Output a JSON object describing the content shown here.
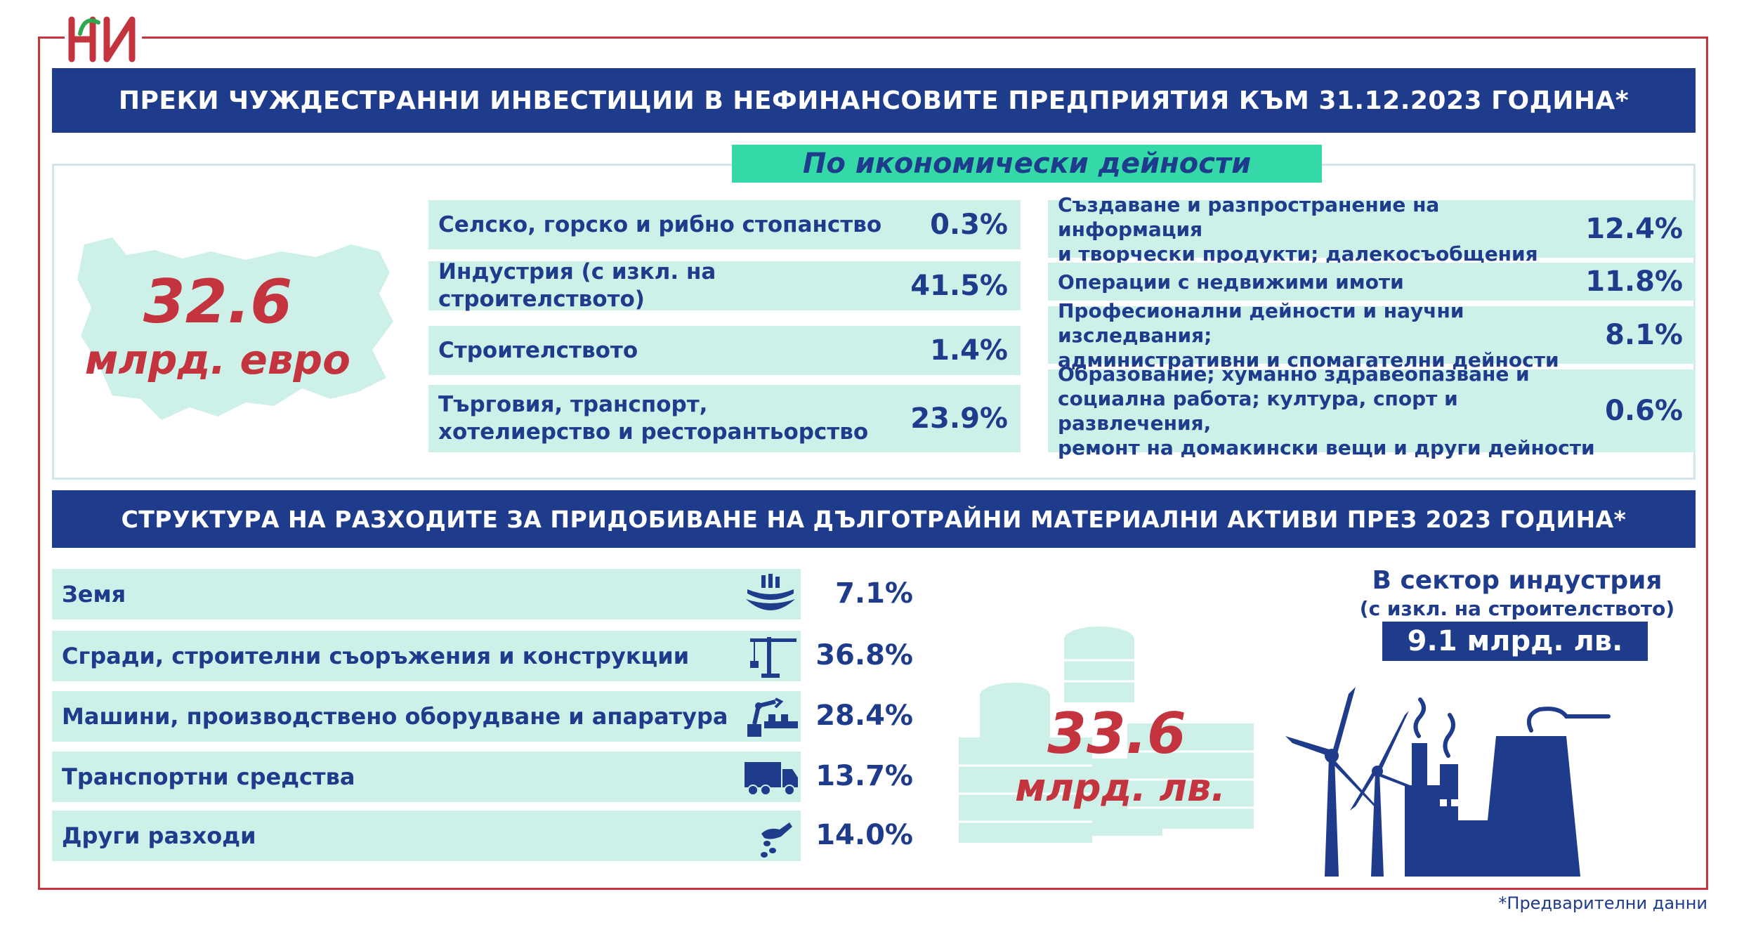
{
  "logo": {
    "text": "НИ",
    "icon": "nsi-logo"
  },
  "title1": "ПРЕКИ ЧУЖДЕСТРАННИ ИНВЕСТИЦИИ В НЕФИНАНСОВИТЕ ПРЕДПРИЯТИЯ КЪМ 31.12.2023 ГОДИНА*",
  "subtitle1": "По икономически дейности",
  "fdi_total": {
    "value": "32.6",
    "unit": "млрд. евро"
  },
  "fdi_left": [
    {
      "label": "Селско, горско и рибно стопанство",
      "pct": "0.3%"
    },
    {
      "label": "Индустрия (с изкл. на строителството)",
      "pct": "41.5%"
    },
    {
      "label": "Строителството",
      "pct": "1.4%"
    },
    {
      "label": "Търговия, транспорт,\nхотелиерство и ресторантьорство",
      "pct": "23.9%"
    }
  ],
  "fdi_right": [
    {
      "label": "Създаване и разпространение на информация\nи творчески продукти; далекосъобщения",
      "pct": "12.4%"
    },
    {
      "label": "Операции с недвижими имоти",
      "pct": "11.8%"
    },
    {
      "label": "Професионални дейности и научни изследвания;\nадминистративни и спомагателни дейности",
      "pct": "8.1%"
    },
    {
      "label": "Образование; хуманно здравеопазване и\nсоциална работа; култура, спорт и развлечения,\nремонт на домакински вещи и други дейности",
      "pct": "0.6%"
    }
  ],
  "title2": "СТРУКТУРА НА РАЗХОДИТЕ ЗА ПРИДОБИВАНЕ НА ДЪЛГОТРАЙНИ МАТЕРИАЛНИ АКТИВИ ПРЕЗ 2023 ГОДИНА*",
  "assets": [
    {
      "label": "Земя",
      "pct": "7.1%",
      "icon": "land-icon"
    },
    {
      "label": "Сгради, строителни съоръжения и конструкции",
      "pct": "36.8%",
      "icon": "crane-icon"
    },
    {
      "label": "Машини, производствено оборудване и апаратура",
      "pct": "28.4%",
      "icon": "robot-arm-icon"
    },
    {
      "label": "Транспортни средства",
      "pct": "13.7%",
      "icon": "truck-icon"
    },
    {
      "label": "Други разходи",
      "pct": "14.0%",
      "icon": "hand-coins-icon"
    }
  ],
  "assets_total": {
    "value": "33.6",
    "unit": "млрд. лв."
  },
  "industry": {
    "line1": "В сектор индустрия",
    "line2": "(с изкл. на строителството)",
    "value": "9.1 млрд. лв."
  },
  "footnote": "*Предварителни данни",
  "colors": {
    "navy": "#1f3c8c",
    "red": "#c4343f",
    "mint": "#cdf1e8",
    "green": "#35d9a8"
  }
}
